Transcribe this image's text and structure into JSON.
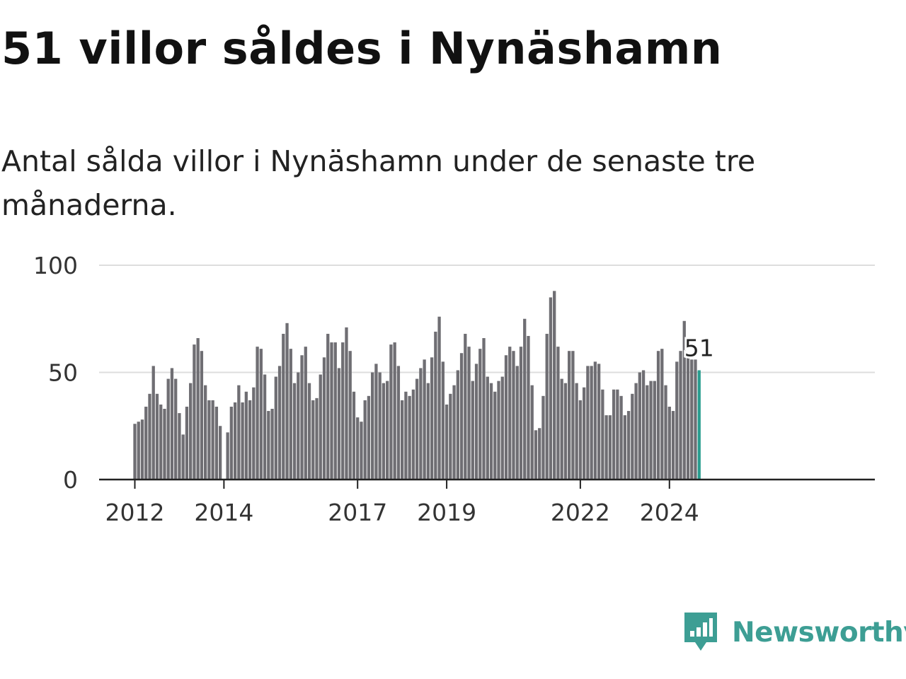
{
  "header": {
    "title": "51 villor såldes i Nynäshamn",
    "subtitle": "Antal sålda villor i Nynäshamn under de senaste tre månaderna."
  },
  "brand": {
    "name": "Newsworthy",
    "color": "#3d9e94"
  },
  "colors": {
    "bar": "#6f6e73",
    "highlight": "#2a9d8f",
    "grid": "#dddddd",
    "axis": "#222222"
  },
  "chart_data": {
    "type": "bar",
    "title": "51 villor såldes i Nynäshamn",
    "subtitle": "Antal sålda villor i Nynäshamn under de senaste tre månaderna.",
    "xlabel": "",
    "ylabel": "",
    "ylim": [
      0,
      100
    ],
    "yticks": [
      0,
      50,
      100
    ],
    "grid": true,
    "x_start": "2012-01",
    "xticks": [
      {
        "label": "2012",
        "index": 0
      },
      {
        "label": "2014",
        "index": 24
      },
      {
        "label": "2017",
        "index": 60
      },
      {
        "label": "2019",
        "index": 84
      },
      {
        "label": "2022",
        "index": 120
      },
      {
        "label": "2024",
        "index": 144
      }
    ],
    "values": [
      26,
      27,
      28,
      34,
      40,
      53,
      40,
      35,
      33,
      47,
      52,
      47,
      31,
      21,
      34,
      45,
      63,
      66,
      60,
      44,
      37,
      37,
      34,
      25,
      null,
      22,
      34,
      36,
      44,
      36,
      41,
      37,
      43,
      62,
      61,
      49,
      32,
      33,
      48,
      53,
      68,
      73,
      61,
      45,
      50,
      58,
      62,
      45,
      37,
      38,
      49,
      57,
      68,
      64,
      64,
      52,
      64,
      71,
      60,
      41,
      29,
      27,
      37,
      39,
      50,
      54,
      50,
      45,
      46,
      63,
      64,
      53,
      37,
      41,
      39,
      42,
      47,
      52,
      56,
      45,
      57,
      69,
      76,
      55,
      35,
      40,
      44,
      51,
      59,
      68,
      62,
      46,
      54,
      61,
      66,
      48,
      45,
      41,
      46,
      48,
      58,
      62,
      60,
      53,
      62,
      75,
      67,
      44,
      23,
      24,
      39,
      68,
      85,
      88,
      62,
      47,
      45,
      60,
      60,
      45,
      37,
      43,
      53,
      53,
      55,
      54,
      42,
      30,
      30,
      42,
      42,
      39,
      30,
      32,
      40,
      45,
      50,
      51,
      44,
      46,
      46,
      60,
      61,
      44,
      34,
      32,
      55,
      60,
      74,
      57,
      56,
      56,
      51
    ],
    "highlight_last": true,
    "annotation": "51"
  }
}
